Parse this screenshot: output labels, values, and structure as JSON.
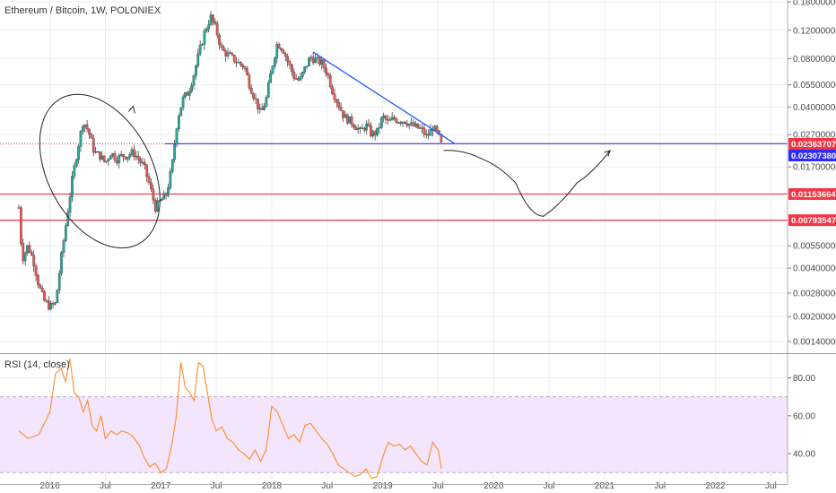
{
  "title": "Ethereum / Bitcoin, 1W, POLONIEX",
  "rsi_title": "RSI (14, close)",
  "colors": {
    "up": "#26a69a",
    "down": "#ef5350",
    "wick": "#444444",
    "trend": "#2962ff",
    "hline": "#f23645",
    "current": "#2c2cff",
    "rsi": "#ff8c2a",
    "rsi_band": "#f3e5fb",
    "grid": "#eceff2"
  },
  "chart_data": [
    {
      "type": "candlestick",
      "scale": "log",
      "ylim": [
        0.0012,
        0.185
      ],
      "x_ticks": [
        "2016",
        "Jul",
        "2017",
        "Jul",
        "2018",
        "Jul",
        "2019",
        "Jul",
        "2020",
        "Jul",
        "2021",
        "Jul",
        "2022",
        "Jul"
      ],
      "x_tick_dates": [
        2016.0,
        2016.5,
        2017.0,
        2017.5,
        2018.0,
        2018.5,
        2019.0,
        2019.5,
        2020.0,
        2020.5,
        2021.0,
        2021.5,
        2022.0,
        2022.5
      ],
      "x_range": [
        2015.55,
        2022.65
      ],
      "y_ticks": [
        "0.18000000",
        "0.12000000",
        "0.08000000",
        "0.05500000",
        "0.04000000",
        "0.02700000",
        "0.01700000",
        "0.00550000",
        "0.00400000",
        "0.00280000",
        "0.00200000",
        "0.00140000"
      ],
      "y_tick_values": [
        0.18,
        0.12,
        0.08,
        0.055,
        0.04,
        0.027,
        0.017,
        0.0055,
        0.004,
        0.0028,
        0.002,
        0.0014
      ],
      "price_tags": [
        {
          "label": "0.02363707",
          "value": 0.02363707,
          "color": "#f23645"
        },
        {
          "label": "0.02307380",
          "value": 0.0230738,
          "color": "#2c2cff"
        },
        {
          "label": "0.01153664",
          "value": 0.01153664,
          "color": "#f23645"
        },
        {
          "label": "0.00793547",
          "value": 0.00793547,
          "color": "#f23645"
        }
      ],
      "horizontal_lines": [
        {
          "value": 0.01153664,
          "from": 2015.55,
          "to": 2022.65
        },
        {
          "value": 0.00793547,
          "from": 2015.55,
          "to": 2022.65
        },
        {
          "value": 0.0237,
          "from": 2017.04,
          "to": 2022.65
        }
      ],
      "trendline": {
        "points": [
          [
            2018.37,
            0.088
          ],
          [
            2019.65,
            0.0237
          ]
        ]
      },
      "projection": {
        "points": [
          [
            2019.55,
            0.0215
          ],
          [
            2019.9,
            0.019
          ],
          [
            2020.2,
            0.0135
          ],
          [
            2020.45,
            0.0084
          ],
          [
            2020.75,
            0.0135
          ],
          [
            2021.05,
            0.0215
          ]
        ]
      },
      "annotation_ellipse": {
        "center": [
          2016.45,
          0.016
        ],
        "arrow_at": [
          2016.75,
          0.039
        ]
      },
      "price_path": [
        [
          2015.72,
          0.0095
        ],
        [
          2015.75,
          0.0045
        ],
        [
          2015.8,
          0.0055
        ],
        [
          2015.85,
          0.0045
        ],
        [
          2015.9,
          0.0031
        ],
        [
          2015.95,
          0.0025
        ],
        [
          2016.0,
          0.0023
        ],
        [
          2016.05,
          0.0024
        ],
        [
          2016.1,
          0.0045
        ],
        [
          2016.15,
          0.008
        ],
        [
          2016.2,
          0.014
        ],
        [
          2016.25,
          0.022
        ],
        [
          2016.3,
          0.033
        ],
        [
          2016.35,
          0.028
        ],
        [
          2016.4,
          0.021
        ],
        [
          2016.45,
          0.02
        ],
        [
          2016.5,
          0.018
        ],
        [
          2016.55,
          0.021
        ],
        [
          2016.6,
          0.019
        ],
        [
          2016.65,
          0.02
        ],
        [
          2016.7,
          0.02
        ],
        [
          2016.75,
          0.021
        ],
        [
          2016.8,
          0.019
        ],
        [
          2016.85,
          0.017
        ],
        [
          2016.9,
          0.013
        ],
        [
          2016.95,
          0.0095
        ],
        [
          2017.0,
          0.0105
        ],
        [
          2017.05,
          0.0115
        ],
        [
          2017.1,
          0.017
        ],
        [
          2017.15,
          0.034
        ],
        [
          2017.2,
          0.045
        ],
        [
          2017.25,
          0.05
        ],
        [
          2017.3,
          0.065
        ],
        [
          2017.35,
          0.09
        ],
        [
          2017.4,
          0.12
        ],
        [
          2017.45,
          0.145
        ],
        [
          2017.5,
          0.12
        ],
        [
          2017.55,
          0.09
        ],
        [
          2017.6,
          0.085
        ],
        [
          2017.65,
          0.08
        ],
        [
          2017.7,
          0.075
        ],
        [
          2017.75,
          0.072
        ],
        [
          2017.8,
          0.055
        ],
        [
          2017.85,
          0.045
        ],
        [
          2017.9,
          0.036
        ],
        [
          2017.95,
          0.045
        ],
        [
          2018.0,
          0.07
        ],
        [
          2018.05,
          0.1
        ],
        [
          2018.1,
          0.092
        ],
        [
          2018.15,
          0.075
        ],
        [
          2018.2,
          0.062
        ],
        [
          2018.25,
          0.058
        ],
        [
          2018.3,
          0.07
        ],
        [
          2018.35,
          0.082
        ],
        [
          2018.4,
          0.078
        ],
        [
          2018.45,
          0.075
        ],
        [
          2018.5,
          0.065
        ],
        [
          2018.55,
          0.05
        ],
        [
          2018.6,
          0.042
        ],
        [
          2018.65,
          0.035
        ],
        [
          2018.7,
          0.033
        ],
        [
          2018.75,
          0.031
        ],
        [
          2018.8,
          0.028
        ],
        [
          2018.85,
          0.031
        ],
        [
          2018.9,
          0.027
        ],
        [
          2018.95,
          0.028
        ],
        [
          2019.0,
          0.035
        ],
        [
          2019.05,
          0.032
        ],
        [
          2019.1,
          0.034
        ],
        [
          2019.15,
          0.033
        ],
        [
          2019.2,
          0.033
        ],
        [
          2019.25,
          0.031
        ],
        [
          2019.3,
          0.03
        ],
        [
          2019.35,
          0.029
        ],
        [
          2019.4,
          0.026
        ],
        [
          2019.45,
          0.03
        ],
        [
          2019.5,
          0.027
        ],
        [
          2019.53,
          0.0231
        ]
      ]
    },
    {
      "type": "line",
      "name": "RSI (14, close)",
      "ylim": [
        24,
        92
      ],
      "y_ticks": [
        "80.00",
        "60.00",
        "40.00"
      ],
      "y_tick_values": [
        80,
        60,
        40
      ],
      "band": [
        30,
        70
      ],
      "x": [
        2015.72,
        2015.8,
        2015.9,
        2016.0,
        2016.05,
        2016.1,
        2016.14,
        2016.18,
        2016.22,
        2016.26,
        2016.3,
        2016.34,
        2016.38,
        2016.42,
        2016.46,
        2016.5,
        2016.55,
        2016.6,
        2016.65,
        2016.7,
        2016.75,
        2016.8,
        2016.85,
        2016.9,
        2016.95,
        2017.0,
        2017.05,
        2017.1,
        2017.14,
        2017.18,
        2017.22,
        2017.26,
        2017.3,
        2017.34,
        2017.38,
        2017.42,
        2017.46,
        2017.5,
        2017.55,
        2017.6,
        2017.65,
        2017.7,
        2017.75,
        2017.8,
        2017.85,
        2017.9,
        2017.95,
        2018.0,
        2018.05,
        2018.1,
        2018.15,
        2018.2,
        2018.25,
        2018.3,
        2018.35,
        2018.4,
        2018.45,
        2018.5,
        2018.55,
        2018.6,
        2018.65,
        2018.7,
        2018.75,
        2018.8,
        2018.85,
        2018.9,
        2018.95,
        2019.0,
        2019.05,
        2019.1,
        2019.15,
        2019.2,
        2019.25,
        2019.3,
        2019.35,
        2019.4,
        2019.45,
        2019.5,
        2019.53
      ],
      "values": [
        52,
        48,
        50,
        62,
        82,
        85,
        78,
        90,
        72,
        70,
        62,
        68,
        55,
        52,
        60,
        48,
        52,
        50,
        52,
        51,
        49,
        45,
        38,
        33,
        35,
        30,
        32,
        45,
        60,
        88,
        75,
        72,
        68,
        88,
        86,
        72,
        58,
        52,
        54,
        48,
        46,
        42,
        40,
        37,
        42,
        36,
        42,
        65,
        62,
        55,
        48,
        50,
        46,
        55,
        56,
        52,
        48,
        45,
        40,
        34,
        32,
        30,
        28,
        29,
        32,
        27,
        28,
        38,
        46,
        44,
        45,
        42,
        44,
        40,
        36,
        34,
        46,
        42,
        32
      ]
    }
  ]
}
